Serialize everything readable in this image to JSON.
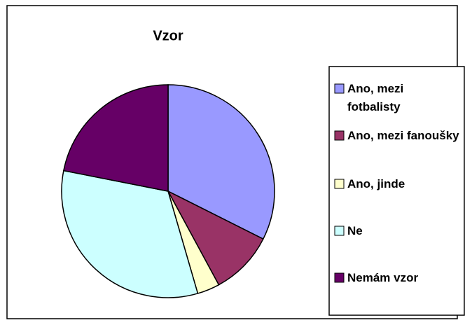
{
  "chart_data": {
    "type": "pie",
    "title": "Vzor",
    "categories": [
      "Ano, mezi fotbalisty",
      "Ano, mezi fanoušky",
      "Ano, jinde",
      "Ne",
      "Nemám vzor"
    ],
    "values": [
      32.4,
      9.7,
      3.4,
      32.6,
      21.9
    ],
    "colors": [
      "#9999FF",
      "#993366",
      "#FFFFCC",
      "#CCFFFF",
      "#660066"
    ],
    "legend": "right"
  }
}
